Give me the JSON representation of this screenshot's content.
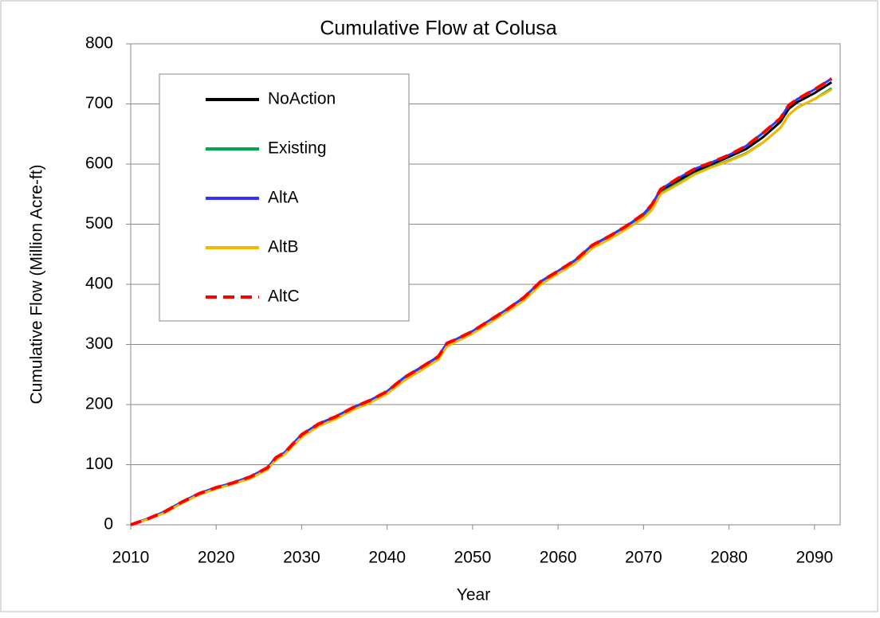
{
  "chart_data": {
    "type": "line",
    "title": "Cumulative Flow at Colusa",
    "x_label": "Year",
    "y_label": "Cumulative Flow (Million Acre-ft)",
    "x": [
      2010,
      2012,
      2014,
      2016,
      2018,
      2020,
      2022,
      2024,
      2026,
      2027,
      2028,
      2030,
      2032,
      2034,
      2036,
      2038,
      2040,
      2042,
      2044,
      2046,
      2047,
      2048,
      2050,
      2052,
      2054,
      2056,
      2058,
      2060,
      2062,
      2064,
      2066,
      2068,
      2070,
      2071,
      2072,
      2074,
      2076,
      2078,
      2080,
      2082,
      2084,
      2086,
      2087,
      2088,
      2090,
      2092
    ],
    "series": [
      {
        "name": "NoAction",
        "color": "#000000",
        "values": [
          0,
          10,
          22,
          38,
          52,
          62,
          70,
          80,
          95,
          112,
          120,
          150,
          168,
          180,
          195,
          207,
          222,
          245,
          262,
          280,
          302,
          308,
          322,
          340,
          358,
          378,
          405,
          422,
          440,
          465,
          480,
          497,
          515,
          530,
          555,
          572,
          588,
          600,
          612,
          625,
          645,
          670,
          692,
          703,
          718,
          736
        ]
      },
      {
        "name": "Existing",
        "color": "#00a651",
        "values": [
          0,
          10,
          22,
          38,
          52,
          62,
          70,
          80,
          95,
          112,
          120,
          150,
          168,
          180,
          195,
          207,
          222,
          245,
          262,
          280,
          302,
          308,
          322,
          340,
          358,
          378,
          405,
          422,
          440,
          465,
          480,
          497,
          515,
          528,
          552,
          568,
          584,
          596,
          606,
          618,
          636,
          660,
          682,
          694,
          708,
          726
        ]
      },
      {
        "name": "AltA",
        "color": "#3333ff",
        "values": [
          0,
          10,
          22,
          38,
          52,
          62,
          70,
          80,
          95,
          112,
          120,
          150,
          168,
          180,
          195,
          207,
          222,
          245,
          262,
          280,
          302,
          308,
          322,
          340,
          358,
          378,
          405,
          422,
          440,
          465,
          480,
          497,
          517,
          533,
          558,
          576,
          592,
          603,
          615,
          630,
          652,
          676,
          698,
          708,
          724,
          742
        ]
      },
      {
        "name": "AltB",
        "color": "#f5b800",
        "values": [
          0,
          9,
          20,
          36,
          50,
          60,
          68,
          77,
          92,
          108,
          117,
          146,
          164,
          176,
          191,
          203,
          218,
          240,
          257,
          275,
          297,
          304,
          318,
          336,
          354,
          373,
          400,
          418,
          435,
          460,
          475,
          492,
          510,
          524,
          550,
          566,
          583,
          595,
          605,
          617,
          636,
          660,
          682,
          694,
          708,
          724
        ]
      },
      {
        "name": "AltC",
        "color": "#ff0000",
        "dashed": true,
        "values": [
          0,
          10,
          22,
          38,
          52,
          62,
          70,
          80,
          95,
          112,
          120,
          150,
          168,
          180,
          195,
          207,
          222,
          245,
          262,
          280,
          302,
          308,
          322,
          340,
          358,
          378,
          405,
          422,
          440,
          465,
          480,
          497,
          517,
          533,
          558,
          576,
          592,
          603,
          615,
          630,
          652,
          676,
          698,
          708,
          724,
          742
        ]
      }
    ],
    "xlim": [
      2010,
      2093
    ],
    "ylim": [
      0,
      800
    ],
    "xticks": [
      2010,
      2020,
      2030,
      2040,
      2050,
      2060,
      2070,
      2080,
      2090
    ],
    "yticks": [
      0,
      100,
      200,
      300,
      400,
      500,
      600,
      700,
      800
    ],
    "grid": true,
    "legend_position": "upper left"
  }
}
